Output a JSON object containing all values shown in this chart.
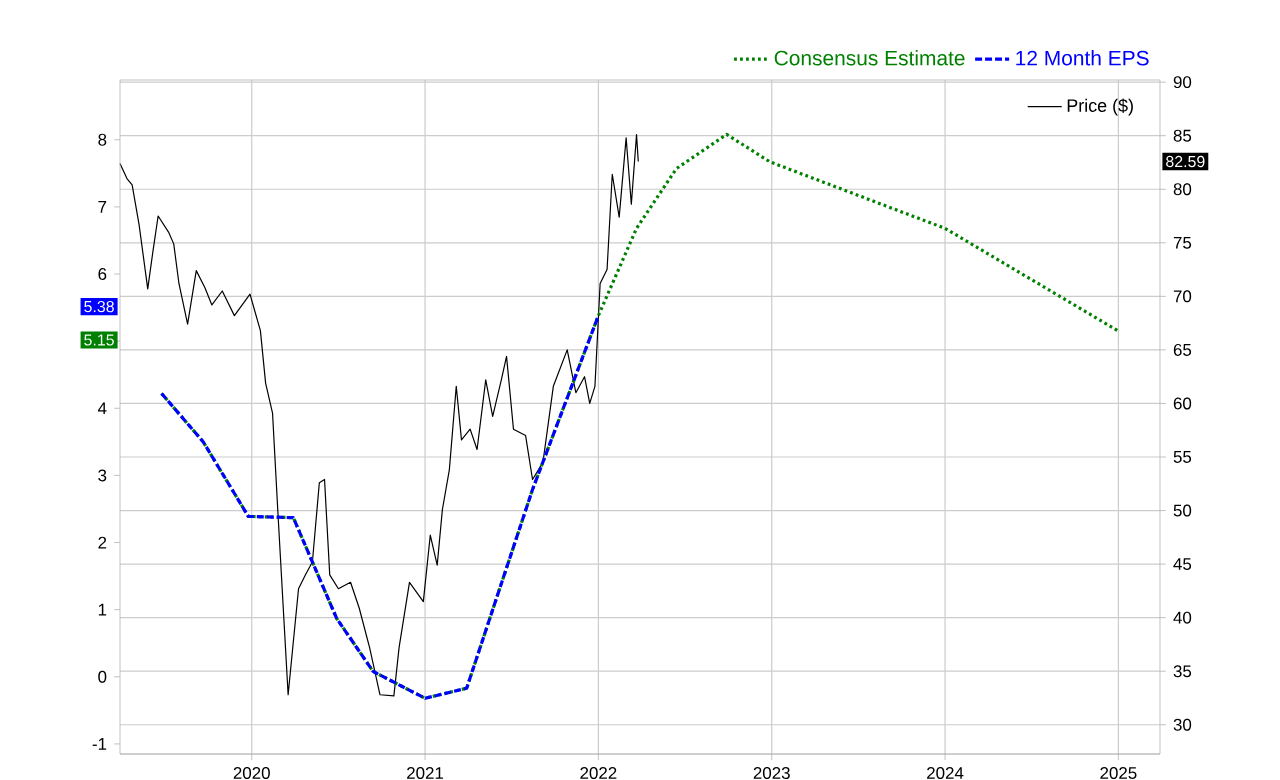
{
  "chart_data": {
    "type": "line",
    "xlim": [
      2019.24,
      2025.24
    ],
    "xticks": [
      2020,
      2021,
      2022,
      2023,
      2024,
      2025
    ],
    "ylim": [
      -1.15,
      8.89
    ],
    "yticks": [
      -1,
      0,
      1,
      2,
      3,
      4,
      {
        "value": 5,
        "label": null
      },
      6,
      7,
      8
    ],
    "y2lim": [
      27.27,
      90.2
    ],
    "y2ticks": [
      30,
      35,
      40,
      45,
      50,
      55,
      60,
      65,
      70,
      75,
      80,
      85,
      90
    ],
    "grid": true,
    "legend": "top right",
    "marker": "none",
    "series": [
      {
        "name": "Consensus Estimate",
        "color": "#008000",
        "line_style": "dotted",
        "x": [
          2019.48,
          2019.72,
          2019.98,
          2020.24,
          2020.49,
          2020.7,
          2021.0,
          2021.24,
          2021.62,
          2022.0,
          2022.22,
          2022.45,
          2022.74,
          2022.99,
          2024.0,
          2025.0
        ],
        "values": [
          4.22,
          3.5,
          2.39,
          2.37,
          0.87,
          0.08,
          -0.32,
          -0.17,
          2.79,
          5.38,
          6.68,
          7.57,
          8.08,
          7.67,
          6.68,
          5.15
        ]
      },
      {
        "name": "12 Month EPS",
        "color": "#0000ff",
        "line_style": "dashed",
        "x": [
          2019.48,
          2019.72,
          2019.98,
          2020.24,
          2020.49,
          2020.7,
          2021.0,
          2021.24,
          2021.62,
          2022.0
        ],
        "values": [
          4.22,
          3.5,
          2.39,
          2.37,
          0.87,
          0.08,
          -0.32,
          -0.17,
          2.79,
          5.38
        ]
      },
      {
        "name": "Price ($)",
        "color": "#000000",
        "line_style": "solid",
        "axis": "y2",
        "x": [
          2019.24,
          2019.28,
          2019.31,
          2019.35,
          2019.4,
          2019.43,
          2019.46,
          2019.52,
          2019.55,
          2019.58,
          2019.63,
          2019.68,
          2019.73,
          2019.77,
          2019.83,
          2019.9,
          2019.99,
          2020.05,
          2020.08,
          2020.12,
          2020.15,
          2020.21,
          2020.27,
          2020.31,
          2020.35,
          2020.39,
          2020.42,
          2020.45,
          2020.5,
          2020.57,
          2020.62,
          2020.68,
          2020.74,
          2020.82,
          2020.85,
          2020.91,
          2020.99,
          2021.03,
          2021.07,
          2021.1,
          2021.14,
          2021.18,
          2021.21,
          2021.26,
          2021.3,
          2021.35,
          2021.39,
          2021.44,
          2021.47,
          2021.51,
          2021.58,
          2021.62,
          2021.68,
          2021.74,
          2021.82,
          2021.87,
          2021.92,
          2021.95,
          2021.98,
          2022.01,
          2022.05,
          2022.08,
          2022.12,
          2022.16,
          2022.19,
          2022.22,
          2022.23
        ],
        "values": [
          82.4,
          81.0,
          80.4,
          76.7,
          70.7,
          74.2,
          77.5,
          76.0,
          74.9,
          71.2,
          67.4,
          72.4,
          70.8,
          69.2,
          70.5,
          68.2,
          70.2,
          66.8,
          61.9,
          59.1,
          50.1,
          32.8,
          42.7,
          44.0,
          45.2,
          52.6,
          52.9,
          44.0,
          42.7,
          43.3,
          40.9,
          37.2,
          32.8,
          32.7,
          37.2,
          43.3,
          41.5,
          47.7,
          44.9,
          50.1,
          53.8,
          61.6,
          56.6,
          57.6,
          55.7,
          62.2,
          58.8,
          62.2,
          64.4,
          57.6,
          57.0,
          52.9,
          54.5,
          61.6,
          65.0,
          61.0,
          62.5,
          60.0,
          61.6,
          71.2,
          72.5,
          81.4,
          77.4,
          84.8,
          78.6,
          85.1,
          82.59
        ]
      }
    ],
    "annotations": [
      "5.15",
      "5.38",
      "82.59"
    ]
  }
}
